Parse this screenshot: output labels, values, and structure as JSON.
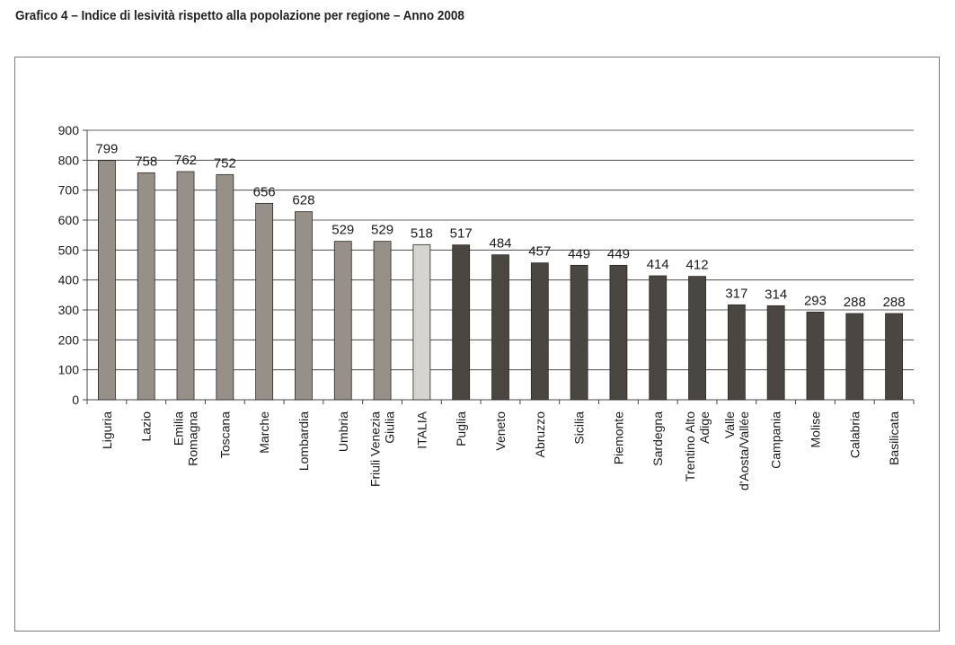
{
  "title": "Grafico 4  – Indice di lesività rispetto alla popolazione per regione – Anno 2008",
  "chart_data": {
    "type": "bar",
    "title": "Grafico 4  – Indice di lesività rispetto alla popolazione per regione – Anno 2008",
    "xlabel": "",
    "ylabel": "",
    "ylim": [
      0,
      900
    ],
    "yticks": [
      0,
      100,
      200,
      300,
      400,
      500,
      600,
      700,
      800,
      900
    ],
    "grid": true,
    "categories": [
      [
        "Liguria"
      ],
      [
        "Lazio"
      ],
      [
        "Emilia",
        "Romagna"
      ],
      [
        "Toscana"
      ],
      [
        "Marche"
      ],
      [
        "Lombardia"
      ],
      [
        "Umbria"
      ],
      [
        "Friuli Venezia",
        "Giulia"
      ],
      [
        "ITALIA"
      ],
      [
        "Puglia"
      ],
      [
        "Veneto"
      ],
      [
        "Abruzzo"
      ],
      [
        "Sicilia"
      ],
      [
        "Piemonte"
      ],
      [
        "Sardegna"
      ],
      [
        "Trentino Alto",
        "Adige"
      ],
      [
        "Valle",
        "d'Aosta/Vallée"
      ],
      [
        "Campania"
      ],
      [
        "Molise"
      ],
      [
        "Calabria"
      ],
      [
        "Basilicata"
      ]
    ],
    "values": [
      799,
      758,
      762,
      752,
      656,
      628,
      529,
      529,
      518,
      517,
      484,
      457,
      449,
      449,
      414,
      412,
      317,
      314,
      293,
      288,
      288
    ],
    "groups": [
      "above",
      "above",
      "above",
      "above",
      "above",
      "above",
      "above",
      "above",
      "italy",
      "below",
      "below",
      "below",
      "below",
      "below",
      "below",
      "below",
      "below",
      "below",
      "below",
      "below",
      "below"
    ],
    "colors": {
      "above": "#969088",
      "italy": "#d6d4cf",
      "below": "#4a4641",
      "stroke": "#2a2724",
      "axis": "#444444",
      "grid": "#333333"
    }
  }
}
